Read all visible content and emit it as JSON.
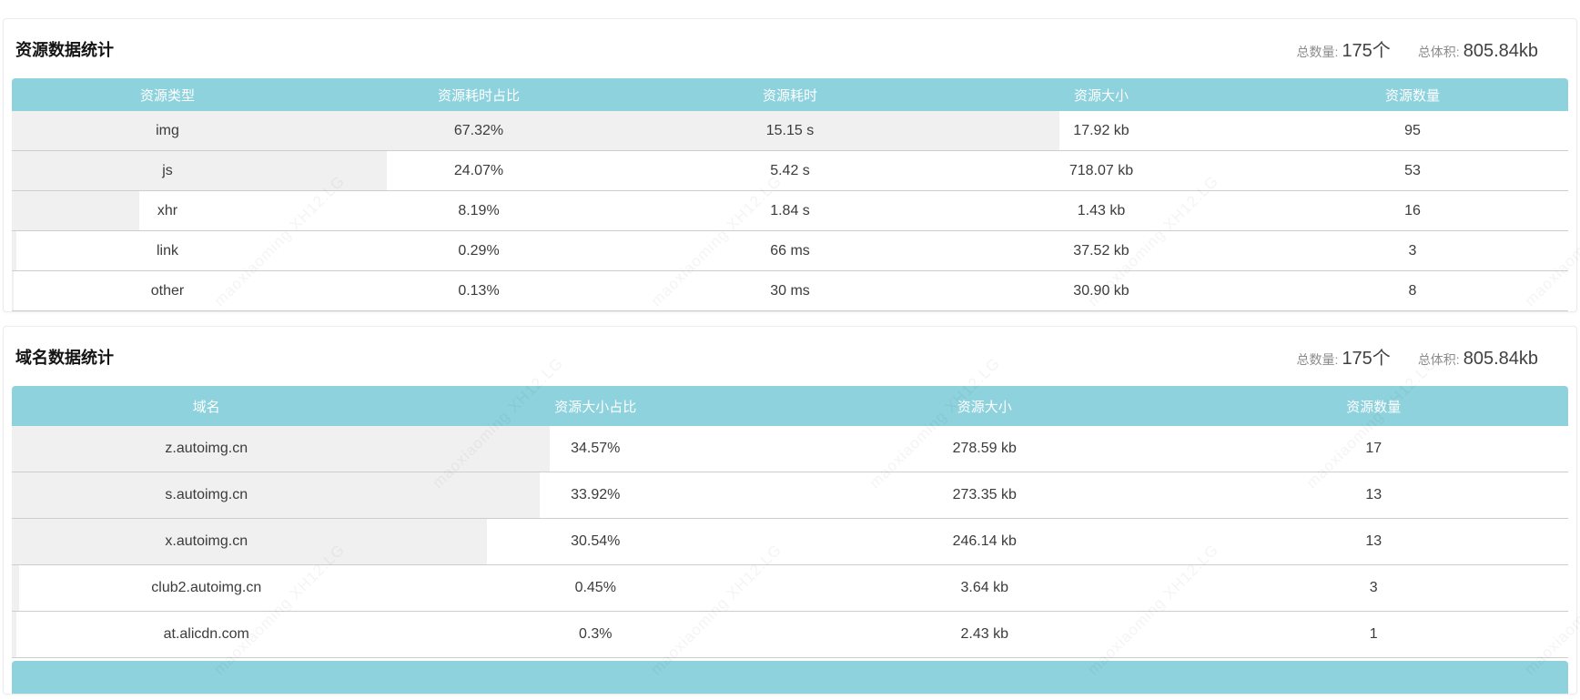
{
  "watermark": {
    "text": "maoxiaoming XH12.LG"
  },
  "colors": {
    "accent": "#8dd2dd",
    "bar": "#f0f0f0"
  },
  "sections": [
    {
      "title": "资源数据统计",
      "stats": [
        {
          "label": "总数量:",
          "value": "175个"
        },
        {
          "label": "总体积:",
          "value": "805.84kb"
        }
      ],
      "columns": [
        "资源类型",
        "资源耗时占比",
        "资源耗时",
        "资源大小",
        "资源数量"
      ],
      "rows": [
        {
          "bar_pct": 67.32,
          "cells": [
            "img",
            "67.32%",
            "15.15 s",
            "17.92 kb",
            "95"
          ]
        },
        {
          "bar_pct": 24.07,
          "cells": [
            "js",
            "24.07%",
            "5.42 s",
            "718.07 kb",
            "53"
          ]
        },
        {
          "bar_pct": 8.19,
          "cells": [
            "xhr",
            "8.19%",
            "1.84 s",
            "1.43 kb",
            "16"
          ]
        },
        {
          "bar_pct": 0.29,
          "cells": [
            "link",
            "0.29%",
            "66 ms",
            "37.52 kb",
            "3"
          ]
        },
        {
          "bar_pct": 0.13,
          "cells": [
            "other",
            "0.13%",
            "30 ms",
            "30.90 kb",
            "8"
          ]
        }
      ]
    },
    {
      "title": "域名数据统计",
      "stats": [
        {
          "label": "总数量:",
          "value": "175个"
        },
        {
          "label": "总体积:",
          "value": "805.84kb"
        }
      ],
      "columns": [
        "域名",
        "资源大小占比",
        "资源大小",
        "资源数量"
      ],
      "rows": [
        {
          "bar_pct": 34.57,
          "cells": [
            "z.autoimg.cn",
            "34.57%",
            "278.59 kb",
            "17"
          ]
        },
        {
          "bar_pct": 33.92,
          "cells": [
            "s.autoimg.cn",
            "33.92%",
            "273.35 kb",
            "13"
          ]
        },
        {
          "bar_pct": 30.54,
          "cells": [
            "x.autoimg.cn",
            "30.54%",
            "246.14 kb",
            "13"
          ]
        },
        {
          "bar_pct": 0.45,
          "cells": [
            "club2.autoimg.cn",
            "0.45%",
            "3.64 kb",
            "3"
          ]
        },
        {
          "bar_pct": 0.3,
          "cells": [
            "at.alicdn.com",
            "0.3%",
            "2.43 kb",
            "1"
          ]
        }
      ]
    }
  ]
}
